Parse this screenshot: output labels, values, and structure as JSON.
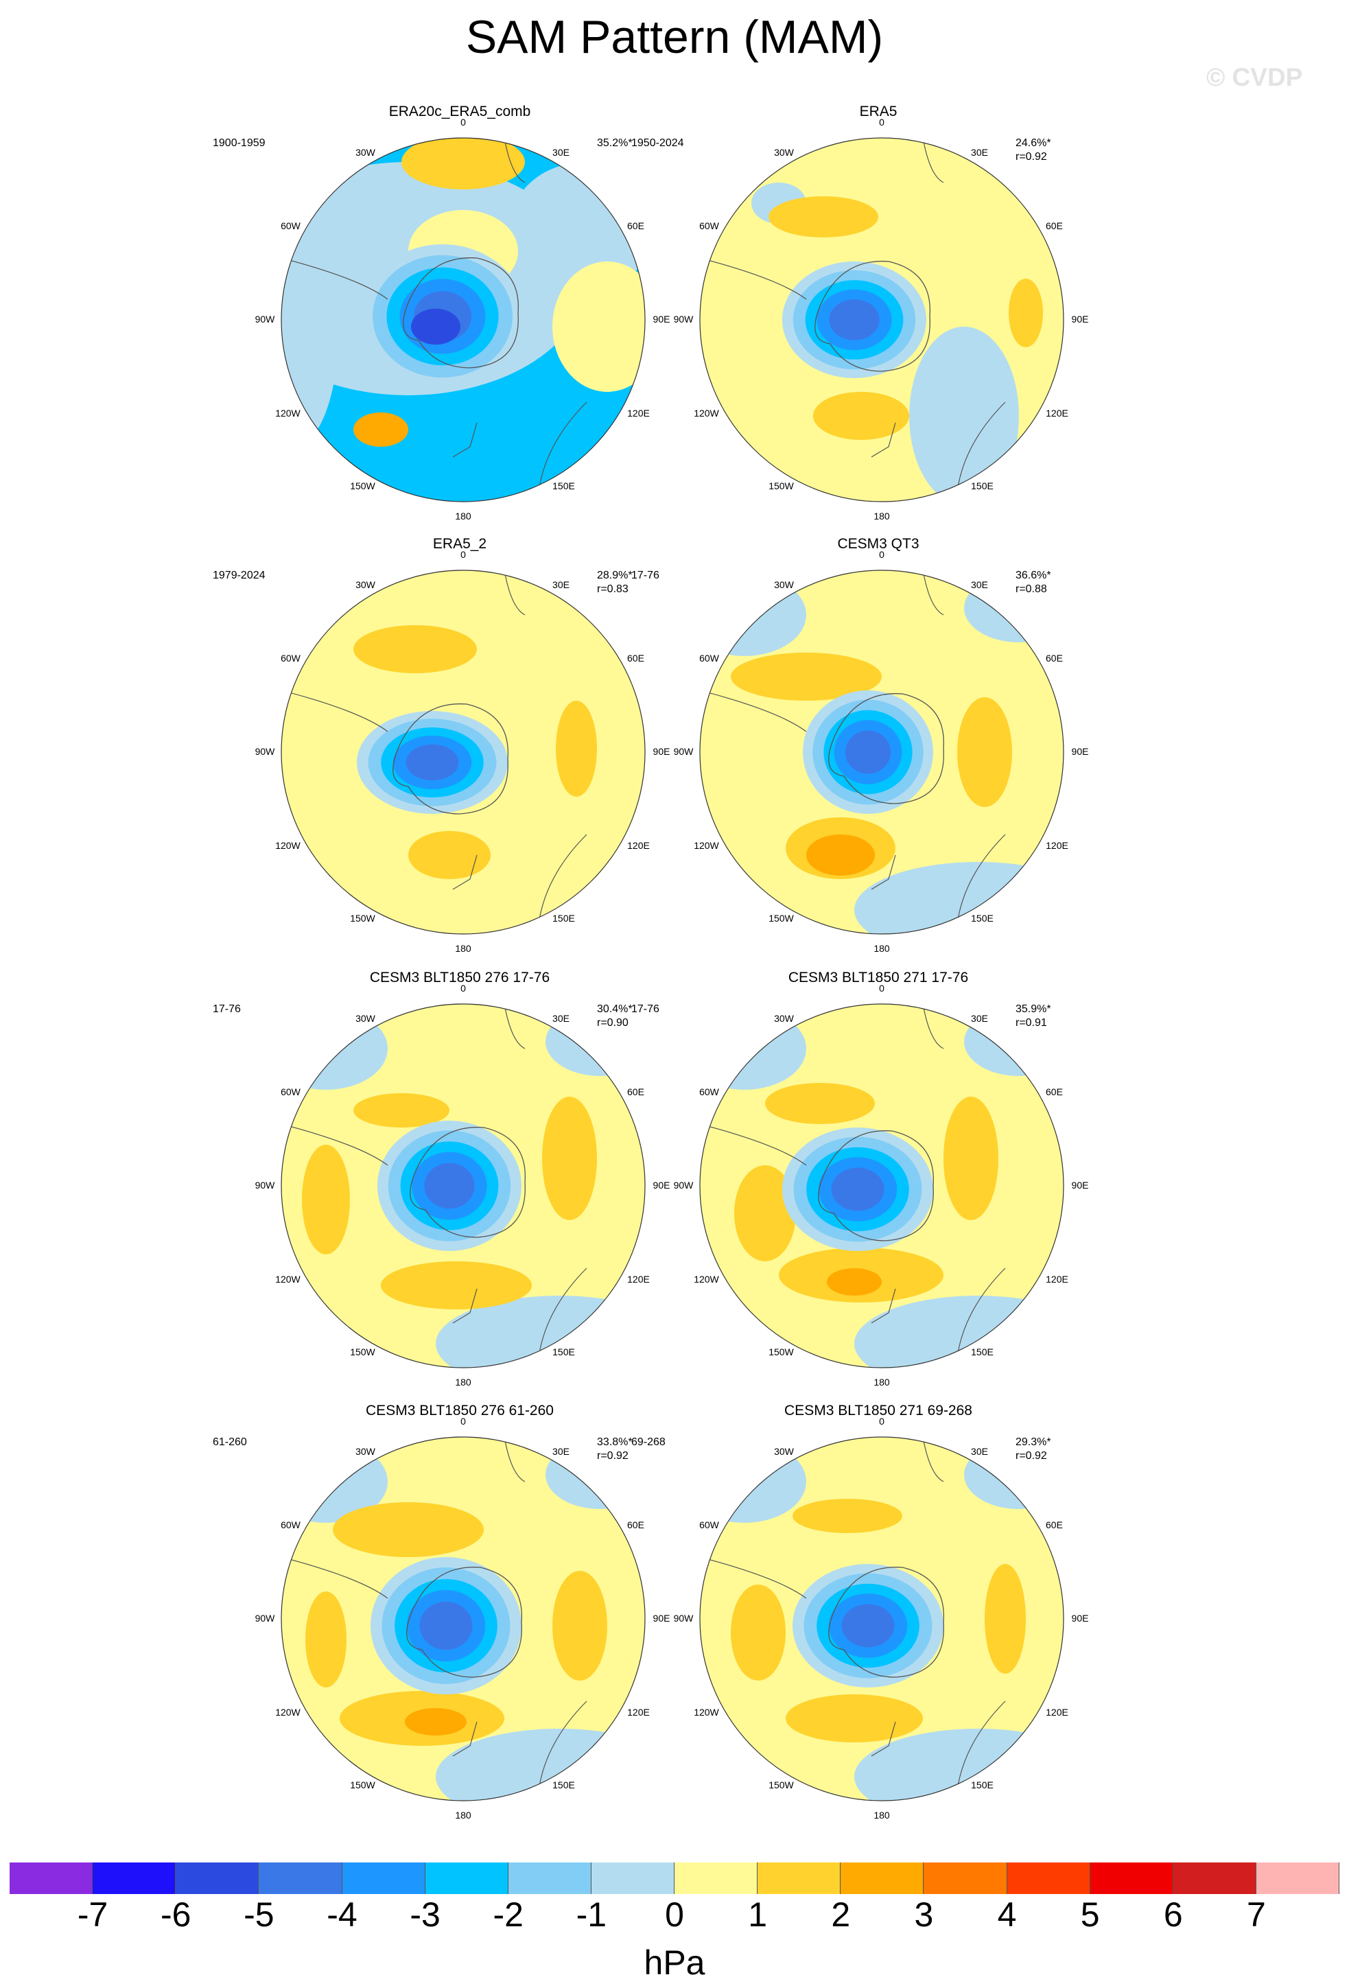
{
  "title": "SAM Pattern (MAM)",
  "watermark": "© CVDP",
  "lon_labels": {
    "top": "0",
    "tr": "30E",
    "rt": "60E",
    "right": "90E",
    "rb": "120E",
    "br": "150E",
    "bottom": "180",
    "bl": "150W",
    "lb": "120W",
    "left": "90W",
    "lt": "60W",
    "tl": "30W"
  },
  "panels": [
    {
      "title": "ERA20c_ERA5_comb",
      "period": "1900-1959",
      "pct": "35.2%*",
      "r": ""
    },
    {
      "title": "ERA5",
      "period": "1950-2024",
      "pct": "24.6%*",
      "r": "r=0.92"
    },
    {
      "title": "ERA5_2",
      "period": "1979-2024",
      "pct": "28.9%*",
      "r": "r=0.83"
    },
    {
      "title": "CESM3 QT3",
      "period": "17-76",
      "pct": "36.6%*",
      "r": "r=0.88"
    },
    {
      "title": "CESM3 BLT1850 276 17-76",
      "period": "17-76",
      "pct": "30.4%*",
      "r": "r=0.90"
    },
    {
      "title": "CESM3 BLT1850 271 17-76",
      "period": "17-76",
      "pct": "35.9%*",
      "r": "r=0.91"
    },
    {
      "title": "CESM3 BLT1850 276 61-260",
      "period": "61-260",
      "pct": "33.8%*",
      "r": "r=0.92"
    },
    {
      "title": "CESM3 BLT1850 271 69-268",
      "period": "69-268",
      "pct": "29.3%*",
      "r": "r=0.92"
    }
  ],
  "colorbar": {
    "units": "hPa",
    "ticks": [
      "-7",
      "-6",
      "-5",
      "-4",
      "-3",
      "-2",
      "-1",
      "0",
      "1",
      "2",
      "3",
      "4",
      "5",
      "6",
      "7"
    ],
    "colors": [
      "#8a2be2",
      "#1e10fa",
      "#2b4be0",
      "#3a78e8",
      "#1e96ff",
      "#00c3ff",
      "#82cdf5",
      "#b4dcf0",
      "#fffa96",
      "#ffd22d",
      "#ffaa00",
      "#ff7800",
      "#ff3c00",
      "#f00000",
      "#d21e1e",
      "#ffb4b4"
    ]
  }
}
